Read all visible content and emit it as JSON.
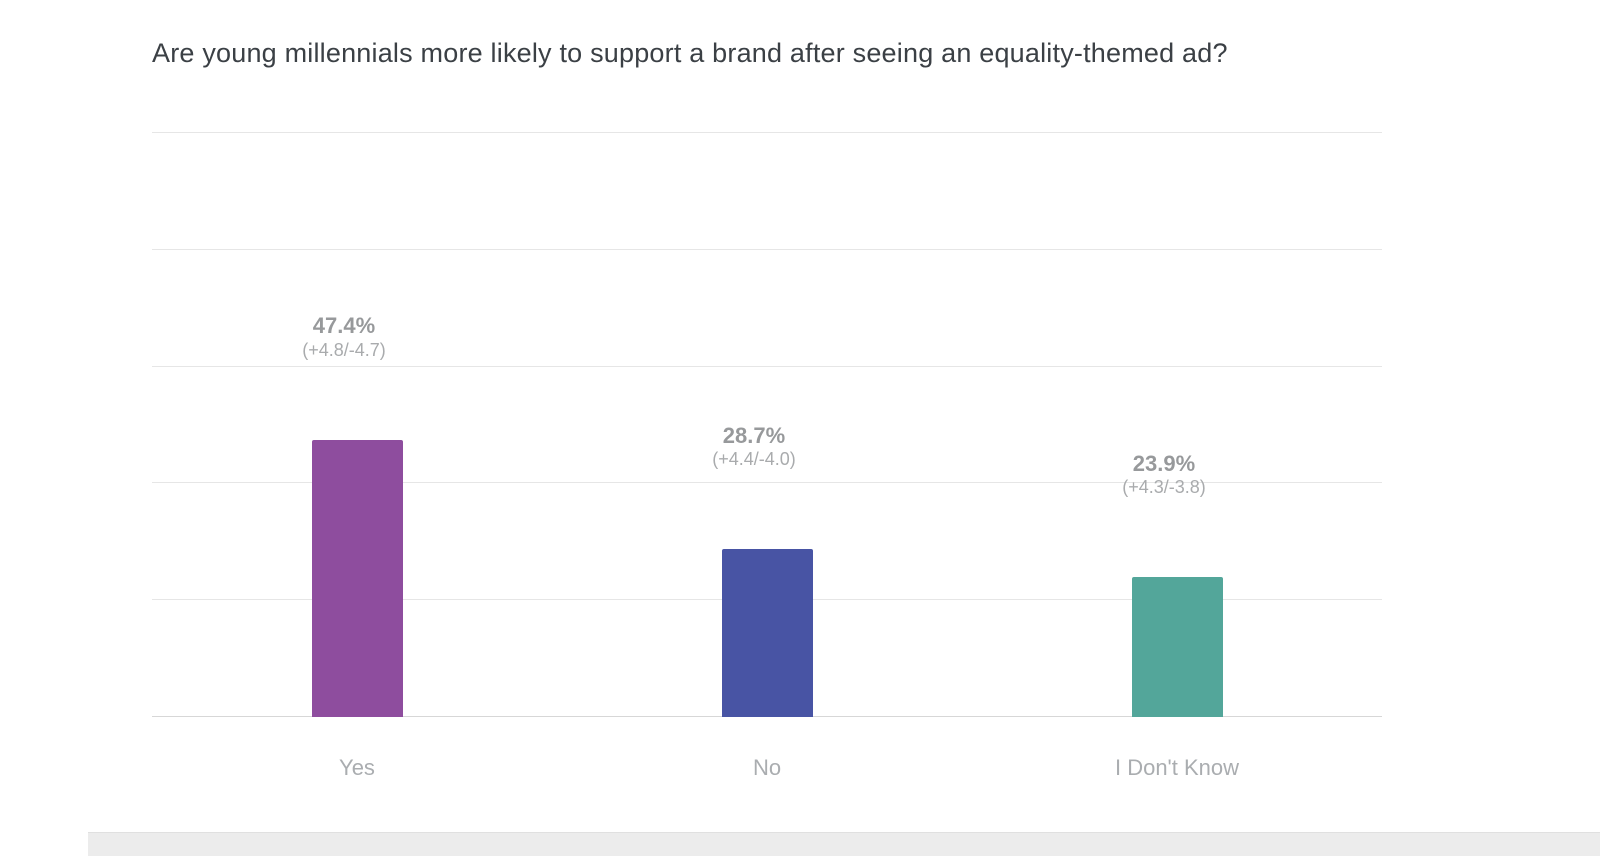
{
  "chart": {
    "title": "Are young millennials more likely to support a brand after seeing an equality-themed ad?"
  },
  "chart_data": {
    "type": "bar",
    "title": "Are young millennials more likely to support a brand after seeing an equality-themed ad?",
    "categories": [
      "Yes",
      "No",
      "I Don't Know"
    ],
    "values": [
      47.4,
      28.7,
      23.9
    ],
    "value_labels": [
      "47.4%",
      "28.7%",
      "23.9%"
    ],
    "error_labels": [
      "(+4.8/-4.7)",
      "(+4.4/-4.0)",
      "(+4.3/-3.8)"
    ],
    "bar_colors": [
      "#8e4d9e",
      "#4854a4",
      "#53a69a"
    ],
    "xlabel": "",
    "ylabel": "",
    "ylim": [
      0,
      100
    ],
    "gridlines": [
      0,
      20,
      40,
      60,
      80,
      100
    ],
    "grid": true,
    "legend": false,
    "value_label_color": "#97999b",
    "error_label_color": "#a9abad",
    "category_label_color": "#aaadb0"
  }
}
